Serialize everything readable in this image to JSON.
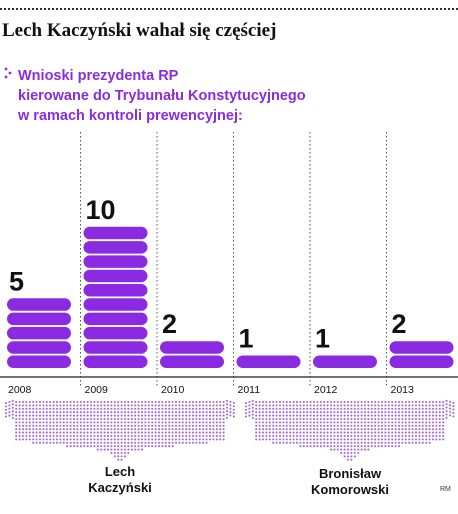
{
  "header": {
    "title": "Lech Kaczyński wahał się częściej",
    "subtitle_lines": [
      "Wnioski prezydenta RP",
      "kierowane do Trybunału Konstytucyjnego",
      "w ramach kontroli prewencyjnej:"
    ]
  },
  "colors": {
    "bar": "#8a2be2",
    "text": "#111111",
    "brace": "#a56ad6"
  },
  "chart_data": {
    "type": "bar",
    "categories": [
      "2008",
      "2009",
      "2010",
      "2011",
      "2012",
      "2013"
    ],
    "values": [
      5,
      10,
      2,
      1,
      1,
      2
    ],
    "data_labels": [
      "5",
      "10",
      "2",
      "1",
      "1",
      "2"
    ],
    "groups": [
      {
        "label_lines": [
          "Lech",
          "Kaczyński"
        ],
        "categories": [
          "2008",
          "2009",
          "2010"
        ]
      },
      {
        "label_lines": [
          "Bronisław",
          "Komorowski"
        ],
        "categories": [
          "2011",
          "2012",
          "2013"
        ]
      }
    ],
    "grid": "vertical dotted separators between years"
  },
  "footnote": "RM"
}
